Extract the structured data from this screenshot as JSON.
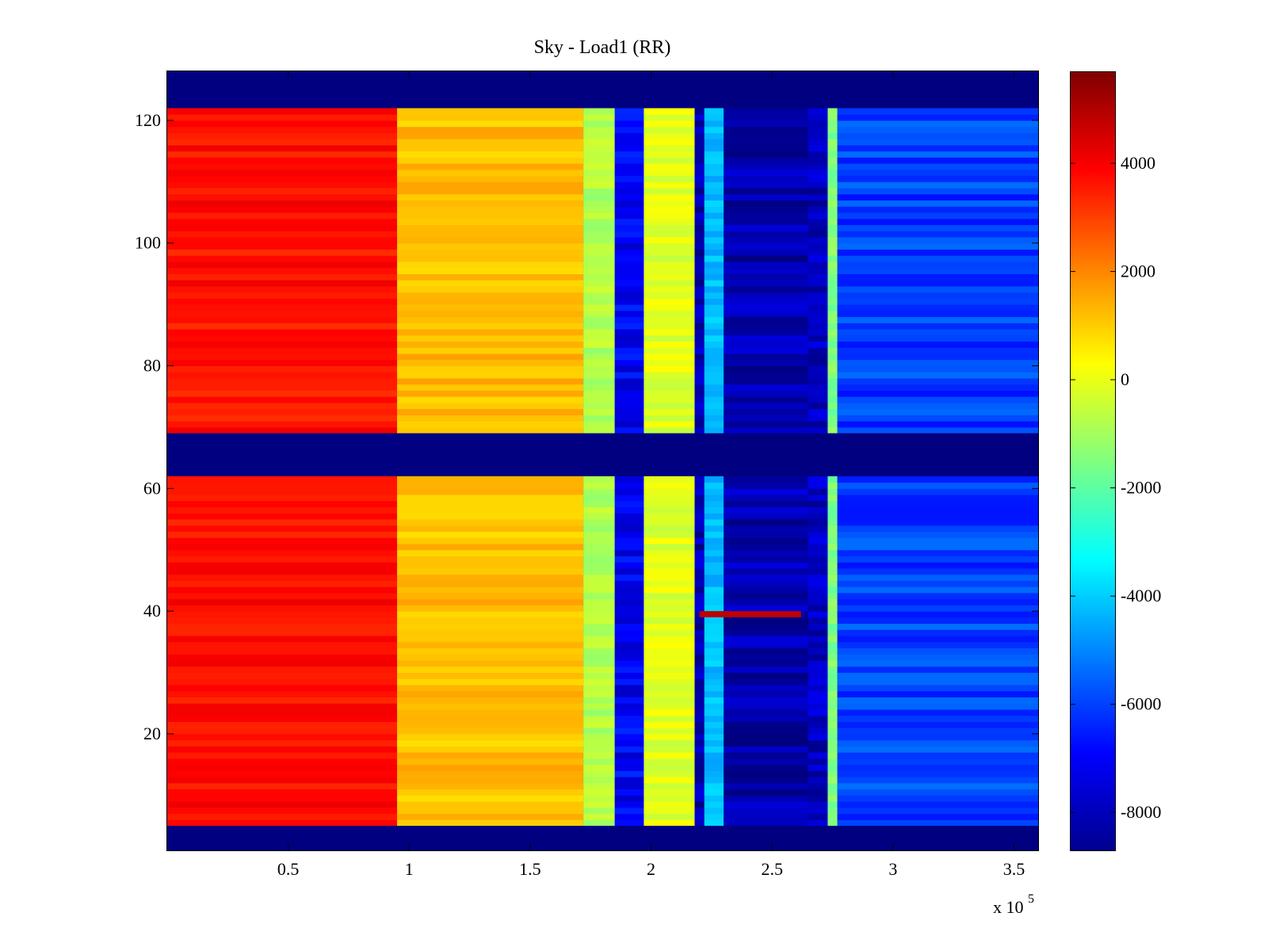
{
  "chart_data": {
    "type": "heatmap",
    "title": "Sky - Load1 (RR)",
    "xlabel": "",
    "ylabel": "",
    "xlim": [
      0,
      360000
    ],
    "ylim": [
      1,
      128
    ],
    "x_ticks": [
      50000,
      100000,
      150000,
      200000,
      250000,
      300000,
      350000
    ],
    "x_tick_labels": [
      "0.5",
      "1",
      "1.5",
      "2",
      "2.5",
      "3",
      "3.5"
    ],
    "x_exponent_label": "x 10",
    "x_exponent": "5",
    "y_ticks": [
      20,
      40,
      60,
      80,
      100,
      120
    ],
    "y_tick_labels": [
      "20",
      "40",
      "60",
      "80",
      "100",
      "120"
    ],
    "colorbar": {
      "colormap": "jet",
      "clim": [
        -8700,
        5700
      ],
      "ticks": [
        4000,
        2000,
        0,
        -2000,
        -4000,
        -6000,
        -8000
      ],
      "tick_labels": [
        "4000",
        "2000",
        "0",
        "-2000",
        "-4000",
        "-6000",
        "-8000"
      ]
    },
    "masked_rows": [
      [
        1,
        4
      ],
      [
        62,
        68
      ],
      [
        122,
        128
      ]
    ],
    "column_bands": [
      {
        "x_start": 0,
        "x_end": 95000,
        "value": 3700
      },
      {
        "x_start": 95000,
        "x_end": 172000,
        "value": 1200
      },
      {
        "x_start": 172000,
        "x_end": 185000,
        "value": -800
      },
      {
        "x_start": 185000,
        "x_end": 197000,
        "value": -7000
      },
      {
        "x_start": 197000,
        "x_end": 218000,
        "value": -100
      },
      {
        "x_start": 218000,
        "x_end": 222000,
        "value": -8000
      },
      {
        "x_start": 222000,
        "x_end": 230000,
        "value": -4200
      },
      {
        "x_start": 230000,
        "x_end": 265000,
        "value": -8000
      },
      {
        "x_start": 265000,
        "x_end": 273000,
        "value": -7800
      },
      {
        "x_start": 273000,
        "x_end": 277000,
        "value": -1500
      },
      {
        "x_start": 277000,
        "x_end": 360000,
        "value": -6000
      }
    ],
    "anomaly_row": {
      "y": 39,
      "x_start": 220000,
      "x_end": 262000,
      "value": 4800
    }
  }
}
